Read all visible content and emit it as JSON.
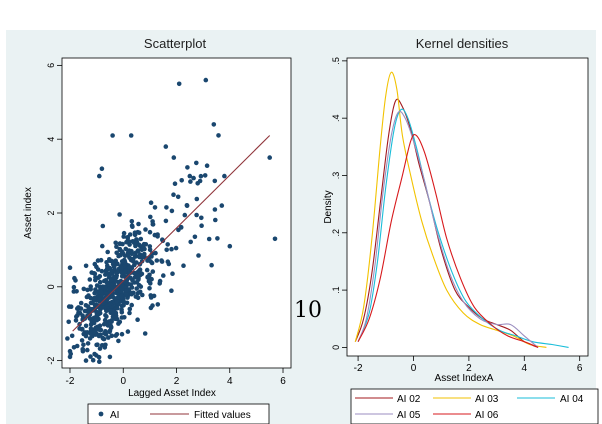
{
  "page": {
    "page_number": "10"
  },
  "colors": {
    "panel_bg": "#eaf2f3",
    "plot_bg": "#ffffff",
    "points": "#1a476f",
    "fit_line": "#90353b",
    "axis": "#000000"
  },
  "chart_data": [
    {
      "type": "scatter",
      "title": "Scatterplot",
      "xlabel": "Lagged Asset Index",
      "ylabel": "Asset index",
      "xlim": [
        -2.3,
        6.3
      ],
      "ylim": [
        -2.2,
        6.2
      ],
      "xticks": [
        -2,
        0,
        2,
        4,
        6
      ],
      "yticks": [
        -2,
        0,
        2,
        4,
        6
      ],
      "xtick_labels": [
        "-2",
        "0",
        "2",
        "4",
        "6"
      ],
      "ytick_labels": [
        "-2",
        "0",
        "2",
        "4",
        "6"
      ],
      "grid": false,
      "legend_position": "bottom",
      "series": [
        {
          "name": "AI",
          "kind": "points",
          "color": "#1a476f",
          "highlight_points": [
            [
              3.1,
              5.6
            ],
            [
              2.1,
              5.5
            ],
            [
              5.5,
              3.5
            ],
            [
              5.7,
              1.3
            ],
            [
              3.4,
              4.4
            ],
            [
              -0.4,
              4.1
            ],
            [
              0.3,
              4.1
            ],
            [
              1.9,
              3.5
            ],
            [
              1.6,
              3.8
            ],
            [
              3.8,
              3.0
            ],
            [
              4.0,
              1.1
            ],
            [
              3.7,
              2.2
            ],
            [
              -0.8,
              3.2
            ],
            [
              -0.9,
              3.0
            ],
            [
              2.5,
              3.0
            ],
            [
              -2.0,
              -1.9
            ],
            [
              -1.4,
              -2.0
            ],
            [
              -0.5,
              -1.9
            ]
          ]
        },
        {
          "name": "Fitted values",
          "kind": "line",
          "color": "#90353b",
          "x": [
            -1.9,
            5.5
          ],
          "y": [
            -1.2,
            4.1
          ]
        }
      ]
    },
    {
      "type": "line",
      "title": "Kernel densities",
      "xlabel": "Asset IndexA",
      "ylabel": "Density",
      "xlim": [
        -2.4,
        6.3
      ],
      "ylim": [
        -0.015,
        0.505
      ],
      "xticks": [
        -2,
        0,
        2,
        4,
        6
      ],
      "yticks": [
        0,
        0.1,
        0.2,
        0.3,
        0.4,
        0.5
      ],
      "xtick_labels": [
        "-2",
        "0",
        "2",
        "4",
        "6"
      ],
      "ytick_labels": [
        "0",
        ".1",
        ".2",
        ".3",
        ".4",
        ".5"
      ],
      "grid": false,
      "legend_position": "bottom",
      "series": [
        {
          "name": "AI 02",
          "color": "#a3191e",
          "x": [
            -2.1,
            -1.8,
            -1.5,
            -1.2,
            -0.9,
            -0.65,
            -0.4,
            -0.1,
            0.2,
            0.6,
            1.0,
            1.5,
            2.0,
            2.5,
            3.0,
            3.5,
            4.0,
            4.5
          ],
          "y": [
            0.01,
            0.05,
            0.13,
            0.25,
            0.37,
            0.43,
            0.42,
            0.38,
            0.32,
            0.25,
            0.17,
            0.1,
            0.07,
            0.05,
            0.04,
            0.03,
            0.01,
            0.0
          ]
        },
        {
          "name": "AI 03",
          "color": "#f2c200",
          "x": [
            -2.1,
            -1.8,
            -1.5,
            -1.2,
            -1.0,
            -0.8,
            -0.6,
            -0.4,
            -0.1,
            0.3,
            0.7,
            1.2,
            1.8,
            2.4,
            3.0,
            3.6,
            4.2,
            4.8
          ],
          "y": [
            0.01,
            0.07,
            0.19,
            0.35,
            0.44,
            0.48,
            0.45,
            0.37,
            0.3,
            0.22,
            0.16,
            0.1,
            0.06,
            0.04,
            0.03,
            0.02,
            0.005,
            0.0
          ]
        },
        {
          "name": "AI 04",
          "color": "#19bdd9",
          "x": [
            -2.0,
            -1.6,
            -1.3,
            -1.0,
            -0.7,
            -0.45,
            -0.2,
            0.1,
            0.5,
            0.9,
            1.4,
            1.9,
            2.5,
            3.1,
            3.7,
            4.3,
            5.0,
            5.6
          ],
          "y": [
            0.01,
            0.06,
            0.15,
            0.28,
            0.38,
            0.415,
            0.4,
            0.35,
            0.27,
            0.2,
            0.13,
            0.08,
            0.05,
            0.03,
            0.02,
            0.01,
            0.005,
            0.0
          ]
        },
        {
          "name": "AI 05",
          "color": "#9b8ec0",
          "x": [
            -2.0,
            -1.7,
            -1.4,
            -1.1,
            -0.8,
            -0.55,
            -0.3,
            0.0,
            0.4,
            0.8,
            1.3,
            1.8,
            2.4,
            3.0,
            3.5,
            4.0,
            4.5
          ],
          "y": [
            0.01,
            0.05,
            0.14,
            0.27,
            0.37,
            0.41,
            0.4,
            0.36,
            0.29,
            0.21,
            0.13,
            0.08,
            0.05,
            0.04,
            0.04,
            0.02,
            0.0
          ]
        },
        {
          "name": "AI 06",
          "color": "#d7191c",
          "x": [
            -2.0,
            -1.6,
            -1.2,
            -0.8,
            -0.4,
            -0.1,
            0.1,
            0.4,
            0.8,
            1.2,
            1.7,
            2.2,
            2.8,
            3.4,
            4.0,
            4.5
          ],
          "y": [
            0.01,
            0.05,
            0.12,
            0.22,
            0.3,
            0.36,
            0.37,
            0.34,
            0.27,
            0.19,
            0.12,
            0.07,
            0.04,
            0.02,
            0.01,
            0.0
          ]
        }
      ]
    }
  ]
}
